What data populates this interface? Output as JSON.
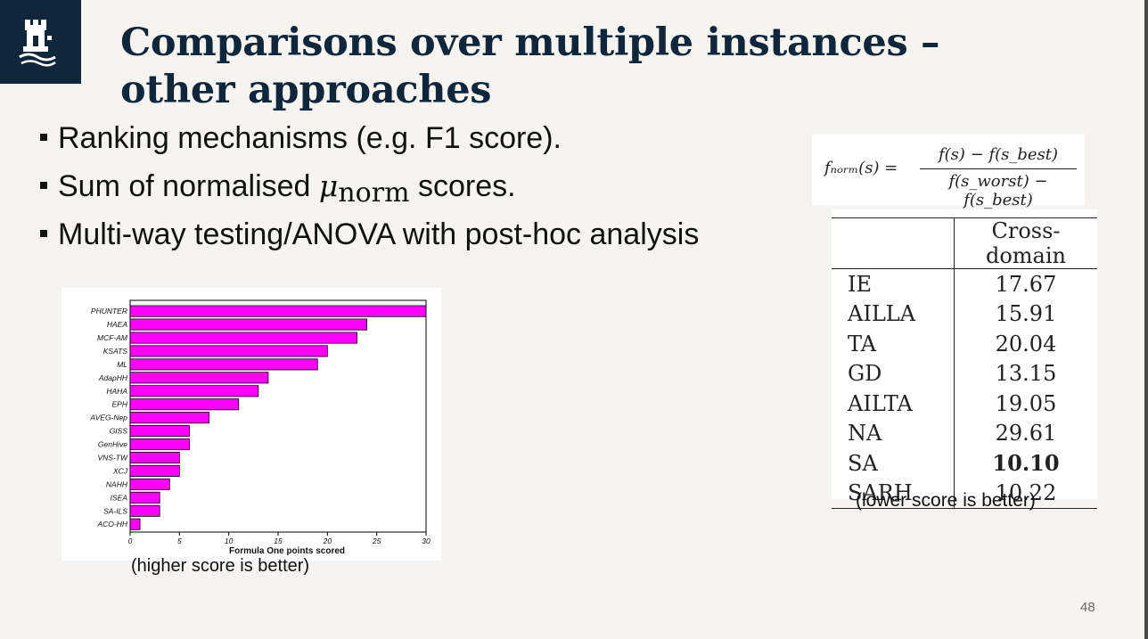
{
  "title": {
    "line1": "Comparisons over multiple instances –",
    "line2": "other approaches"
  },
  "bullets": {
    "b1": "Ranking mechanisms (e.g. F1 score).",
    "b2_pre": "Sum of normalised ",
    "b2_mu": "μ",
    "b2_sub": "norm",
    "b2_post": " scores.",
    "b3": "Multi-way testing/ANOVA with post-hoc analysis"
  },
  "formula": {
    "lhs": "fₙₒᵣₘ(s) =",
    "numerator": "f(s) − f(s_best)",
    "denominator": "f(s_worst) − f(s_best)"
  },
  "table": {
    "header": "Cross-domain",
    "rows": [
      {
        "name": "IE",
        "value": "17.67"
      },
      {
        "name": "AILLA",
        "value": "15.91"
      },
      {
        "name": "TA",
        "value": "20.04"
      },
      {
        "name": "GD",
        "value": "13.15"
      },
      {
        "name": "AILTA",
        "value": "19.05"
      },
      {
        "name": "NA",
        "value": "29.61"
      },
      {
        "name": "SA",
        "value": "10.10"
      },
      {
        "name": "SARH",
        "value": "10.22"
      }
    ],
    "caption": "(lower score is better)"
  },
  "chart_caption": "(higher score is better)",
  "page_number": "48",
  "colors": {
    "brand": "#10263b",
    "bar": "#ff00ff"
  },
  "chart_data": {
    "type": "bar",
    "orientation": "horizontal",
    "categories": [
      "PHUNTER",
      "HAEA",
      "MCF-AM",
      "KSATS",
      "ML",
      "AdapHH",
      "HAHA",
      "EPH",
      "AVEG-Nep",
      "GISS",
      "GenHive",
      "VNS-TW",
      "XCJ",
      "NAHH",
      "ISEA",
      "SA-ILS",
      "ACO-HH"
    ],
    "values": [
      30,
      24,
      23,
      20,
      19,
      14,
      13,
      11,
      8,
      6,
      6,
      5,
      5,
      4,
      3,
      3,
      1
    ],
    "xlabel": "Formula One points scored",
    "ylabel": "",
    "xlim": [
      0,
      30
    ],
    "xticks": [
      0,
      5,
      10,
      15,
      20,
      25,
      30
    ],
    "grid": false
  }
}
